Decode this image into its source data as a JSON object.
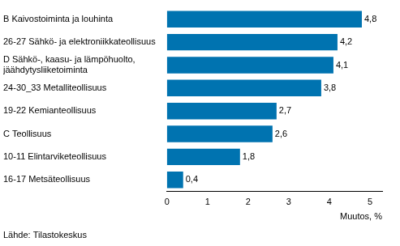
{
  "chart_data": {
    "type": "bar",
    "orientation": "horizontal",
    "categories": [
      "B Kaivostoiminta ja louhinta",
      "26-27 Sähkö- ja elektroniikkateollisuus",
      [
        "D Sähkö-, kaasu- ja lämpöhuolto,",
        "jäähdytysliiketoiminta"
      ],
      "24-30_33 Metalliteollisuus",
      "19-22 Kemianteollisuus",
      "C Teollisuus",
      "10-11 Elintarviketeollisuus",
      "16-17 Metsäteollisuus"
    ],
    "values": [
      4.8,
      4.2,
      4.1,
      3.8,
      2.7,
      2.6,
      1.8,
      0.4
    ],
    "value_labels": [
      "4,8",
      "4,2",
      "4,1",
      "3,8",
      "2,7",
      "2,6",
      "1,8",
      "0,4"
    ],
    "data_labels": true,
    "color": "#0073b0",
    "x_label": "Muutos, %",
    "source": "Lähde: Tilastokeskus",
    "xlim": [
      0,
      5.3
    ],
    "xticks": [
      0,
      1,
      2,
      3,
      4,
      5
    ],
    "grid": false
  }
}
